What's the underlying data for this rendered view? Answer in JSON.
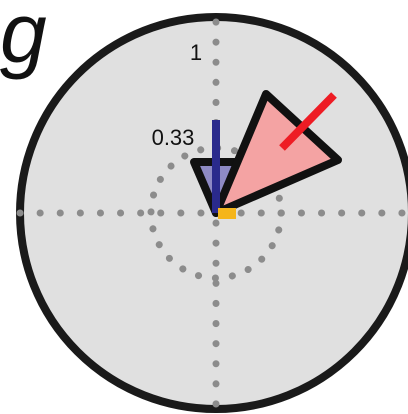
{
  "panel": {
    "letter": "g"
  },
  "rings": {
    "outer_label": "1",
    "inner_label": "0.33"
  },
  "colors": {
    "background": "#e0e0e0",
    "outer_ring": "#1a1a1a",
    "dotted_axes": "#8c8c8c",
    "small_wedge_fill": "#8e8ac4",
    "large_wedge_fill": "#f4a3a3",
    "wedge_stroke": "#111111",
    "vector_blue": "#2a2a8c",
    "vector_red": "#ee1c24",
    "origin_marker": "#f5b51b"
  }
}
